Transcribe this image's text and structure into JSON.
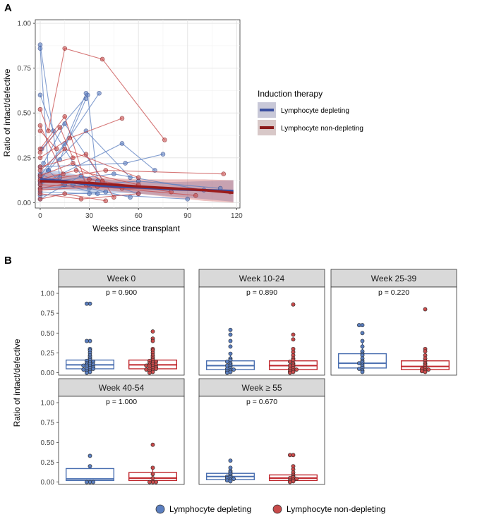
{
  "panel_a": {
    "letter": "A",
    "xlabel": "Weeks since transplant",
    "ylabel": "Ratio of intact/defective",
    "legend_title": "Induction therapy",
    "legend_items": [
      "Lymphocyte depleting",
      "Lymphocyte non-depleting"
    ]
  },
  "panel_b": {
    "letter": "B",
    "ylabel": "Ratio of intact/defective",
    "legend_items": [
      "Lymphocyte depleting",
      "Lymphocyte non-depleting"
    ]
  },
  "colors": {
    "depleting": "#3a4fa0",
    "non_depleting": "#9b1c1c",
    "depleting_light": "#5b7fc0",
    "non_depleting_light": "#c84b4b",
    "facet_header": "#d9d9d9"
  },
  "chart_data": [
    {
      "type": "scatter",
      "title": "",
      "xlabel": "Weeks since transplant",
      "ylabel": "Ratio of intact/defective",
      "xlim": [
        -3,
        122
      ],
      "ylim": [
        -0.03,
        1.02
      ],
      "x_ticks": [
        0,
        30,
        60,
        90,
        120
      ],
      "y_ticks": [
        0.0,
        0.25,
        0.5,
        0.75,
        1.0
      ],
      "y_tick_labels": [
        "0.00",
        "0.25",
        "0.50",
        "0.75",
        "1.00"
      ],
      "x_tick_labels": [
        "0",
        "30",
        "60",
        "90",
        "120"
      ],
      "grid": true,
      "legend": "right",
      "series": [
        {
          "name": "Lymphocyte depleting",
          "trajectories": [
            [
              [
                0,
                0.88
              ],
              [
                12,
                0.14
              ]
            ],
            [
              [
                0,
                0.86
              ],
              [
                5,
                0.18
              ],
              [
                14,
                0.1
              ]
            ],
            [
              [
                0,
                0.6
              ],
              [
                8,
                0.4
              ],
              [
                30,
                0.08
              ]
            ],
            [
              [
                1,
                0.3
              ],
              [
                29,
                0.6
              ],
              [
                35,
                0.12
              ]
            ],
            [
              [
                2,
                0.22
              ],
              [
                15,
                0.44
              ],
              [
                40,
                0.1
              ]
            ],
            [
              [
                0,
                0.15
              ],
              [
                15,
                0.33
              ],
              [
                28,
                0.61
              ]
            ],
            [
              [
                0,
                0.12
              ],
              [
                36,
                0.61
              ]
            ],
            [
              [
                5,
                0.18
              ],
              [
                28,
                0.4
              ],
              [
                55,
                0.14
              ]
            ],
            [
              [
                12,
                0.24
              ],
              [
                28,
                0.58
              ]
            ],
            [
              [
                0,
                0.1
              ],
              [
                50,
                0.33
              ],
              [
                70,
                0.18
              ]
            ],
            [
              [
                0,
                0.2
              ],
              [
                52,
                0.22
              ],
              [
                75,
                0.27
              ]
            ],
            [
              [
                0,
                0.08
              ],
              [
                60,
                0.12
              ],
              [
                110,
                0.08
              ]
            ],
            [
              [
                0,
                0.06
              ],
              [
                30,
                0.05
              ],
              [
                90,
                0.02
              ]
            ],
            [
              [
                0,
                0.14
              ],
              [
                20,
                0.1
              ],
              [
                55,
                0.03
              ]
            ],
            [
              [
                0,
                0.04
              ],
              [
                40,
                0.06
              ]
            ],
            [
              [
                0,
                0.16
              ],
              [
                15,
                0.1
              ],
              [
                35,
                0.05
              ]
            ],
            [
              [
                0,
                0.02
              ],
              [
                25,
                0.15
              ],
              [
                60,
                0.05
              ]
            ],
            [
              [
                0,
                0.11
              ],
              [
                45,
                0.16
              ],
              [
                100,
                0.07
              ]
            ]
          ],
          "trend": [
            [
              0,
              0.13
            ],
            [
              15,
              0.12
            ],
            [
              30,
              0.1
            ],
            [
              45,
              0.09
            ],
            [
              60,
              0.085
            ],
            [
              80,
              0.075
            ],
            [
              100,
              0.07
            ],
            [
              118,
              0.065
            ]
          ]
        },
        {
          "name": "Lymphocyte non-depleting",
          "trajectories": [
            [
              [
                0,
                0.52
              ],
              [
                5,
                0.4
              ],
              [
                15,
                0.86
              ],
              [
                38,
                0.8
              ],
              [
                76,
                0.35
              ]
            ],
            [
              [
                0,
                0.43
              ],
              [
                14,
                0.16
              ]
            ],
            [
              [
                0,
                0.4
              ],
              [
                10,
                0.3
              ]
            ],
            [
              [
                0,
                0.3
              ],
              [
                15,
                0.48
              ],
              [
                28,
                0.1
              ]
            ],
            [
              [
                0,
                0.28
              ],
              [
                12,
                0.42
              ],
              [
                20,
                0.25
              ]
            ],
            [
              [
                0,
                0.25
              ],
              [
                18,
                0.36
              ],
              [
                50,
                0.47
              ]
            ],
            [
              [
                0,
                0.2
              ],
              [
                28,
                0.27
              ],
              [
                45,
                0.03
              ]
            ],
            [
              [
                0,
                0.18
              ],
              [
                15,
                0.3
              ],
              [
                60,
                0.14
              ]
            ],
            [
              [
                0,
                0.12
              ],
              [
                40,
                0.18
              ],
              [
                112,
                0.16
              ]
            ],
            [
              [
                0,
                0.1
              ],
              [
                50,
                0.08
              ],
              [
                116,
                0.06
              ]
            ],
            [
              [
                0,
                0.08
              ],
              [
                30,
                0.13
              ],
              [
                80,
                0.06
              ]
            ],
            [
              [
                0,
                0.05
              ],
              [
                25,
                0.02
              ],
              [
                60,
                0.05
              ]
            ],
            [
              [
                0,
                0.15
              ],
              [
                20,
                0.22
              ],
              [
                38,
                0.12
              ]
            ],
            [
              [
                0,
                0.07
              ],
              [
                35,
                0.09
              ],
              [
                95,
                0.04
              ]
            ],
            [
              [
                0,
                0.02
              ],
              [
                15,
                0.05
              ],
              [
                40,
                0.01
              ]
            ],
            [
              [
                0,
                0.13
              ],
              [
                22,
                0.18
              ],
              [
                60,
                0.1
              ]
            ]
          ],
          "trend": [
            [
              0,
              0.12
            ],
            [
              15,
              0.115
            ],
            [
              30,
              0.11
            ],
            [
              45,
              0.1
            ],
            [
              60,
              0.09
            ],
            [
              80,
              0.08
            ],
            [
              100,
              0.07
            ],
            [
              118,
              0.055
            ]
          ]
        }
      ]
    },
    {
      "type": "box",
      "ylabel": "Ratio of intact/defective",
      "ylim": [
        -0.03,
        1.08
      ],
      "y_ticks": [
        0.0,
        0.25,
        0.5,
        0.75,
        1.0
      ],
      "y_tick_labels": [
        "0.00",
        "0.25",
        "0.50",
        "0.75",
        "1.00"
      ],
      "legend": "bottom",
      "groups": [
        "Lymphocyte depleting",
        "Lymphocyte non-depleting"
      ],
      "facets": [
        {
          "label": "Week 0",
          "p_label": "p = 0.900",
          "depleting": {
            "q1": 0.05,
            "median": 0.1,
            "q3": 0.16,
            "whisker_lo": 0.0,
            "whisker_hi": 0.3,
            "points": [
              0.87,
              0.87,
              0.4,
              0.4,
              0.3,
              0.28,
              0.25,
              0.22,
              0.2,
              0.18,
              0.16,
              0.15,
              0.14,
              0.13,
              0.12,
              0.11,
              0.1,
              0.1,
              0.09,
              0.08,
              0.08,
              0.07,
              0.06,
              0.05,
              0.05,
              0.04,
              0.03,
              0.02,
              0.01,
              0.0
            ]
          },
          "non_depleting": {
            "q1": 0.05,
            "median": 0.1,
            "q3": 0.16,
            "whisker_lo": 0.0,
            "whisker_hi": 0.3,
            "points": [
              0.52,
              0.43,
              0.4,
              0.3,
              0.28,
              0.25,
              0.22,
              0.2,
              0.18,
              0.16,
              0.15,
              0.14,
              0.13,
              0.12,
              0.11,
              0.1,
              0.1,
              0.09,
              0.08,
              0.08,
              0.07,
              0.06,
              0.05,
              0.05,
              0.04,
              0.03,
              0.02,
              0.01,
              0.0
            ]
          }
        },
        {
          "label": "Week 10-24",
          "p_label": "p = 0.890",
          "depleting": {
            "q1": 0.04,
            "median": 0.09,
            "q3": 0.15,
            "whisker_lo": 0.0,
            "whisker_hi": 0.24,
            "points": [
              0.54,
              0.48,
              0.4,
              0.33,
              0.24,
              0.18,
              0.16,
              0.14,
              0.12,
              0.1,
              0.09,
              0.08,
              0.06,
              0.05,
              0.04,
              0.03,
              0.02,
              0.01,
              0.0
            ]
          },
          "non_depleting": {
            "q1": 0.04,
            "median": 0.09,
            "q3": 0.15,
            "whisker_lo": 0.0,
            "whisker_hi": 0.3,
            "points": [
              0.86,
              0.48,
              0.42,
              0.3,
              0.26,
              0.22,
              0.18,
              0.16,
              0.14,
              0.12,
              0.1,
              0.09,
              0.08,
              0.06,
              0.05,
              0.04,
              0.03,
              0.02,
              0.01,
              0.0
            ]
          }
        },
        {
          "label": "Week 25-39",
          "p_label": "p = 0.220",
          "depleting": {
            "q1": 0.06,
            "median": 0.12,
            "q3": 0.24,
            "whisker_lo": 0.0,
            "whisker_hi": 0.4,
            "points": [
              0.6,
              0.6,
              0.5,
              0.4,
              0.33,
              0.27,
              0.24,
              0.22,
              0.18,
              0.15,
              0.13,
              0.12,
              0.1,
              0.08,
              0.06,
              0.05,
              0.03,
              0.01
            ]
          },
          "non_depleting": {
            "q1": 0.04,
            "median": 0.08,
            "q3": 0.15,
            "whisker_lo": 0.0,
            "whisker_hi": 0.28,
            "points": [
              0.8,
              0.3,
              0.27,
              0.22,
              0.18,
              0.15,
              0.12,
              0.1,
              0.08,
              0.06,
              0.05,
              0.04,
              0.03,
              0.02,
              0.01
            ]
          }
        },
        {
          "label": "Week 40-54",
          "p_label": "p = 1.000",
          "depleting": {
            "q1": 0.02,
            "median": 0.04,
            "q3": 0.17,
            "whisker_lo": 0.0,
            "whisker_hi": 0.2,
            "points": [
              0.33,
              0.2,
              0.0,
              0.0,
              0.0
            ]
          },
          "non_depleting": {
            "q1": 0.02,
            "median": 0.05,
            "q3": 0.12,
            "whisker_lo": 0.0,
            "whisker_hi": 0.18,
            "points": [
              0.47,
              0.18,
              0.1,
              0.05,
              0.0,
              0.0,
              0.0
            ]
          }
        },
        {
          "label": "Week ≥ 55",
          "p_label": "p = 0.670",
          "depleting": {
            "q1": 0.03,
            "median": 0.07,
            "q3": 0.11,
            "whisker_lo": 0.0,
            "whisker_hi": 0.18,
            "points": [
              0.27,
              0.18,
              0.14,
              0.12,
              0.1,
              0.08,
              0.07,
              0.06,
              0.05,
              0.04,
              0.03,
              0.02,
              0.01
            ]
          },
          "non_depleting": {
            "q1": 0.02,
            "median": 0.05,
            "q3": 0.09,
            "whisker_lo": 0.0,
            "whisker_hi": 0.2,
            "points": [
              0.34,
              0.34,
              0.2,
              0.16,
              0.12,
              0.09,
              0.07,
              0.06,
              0.05,
              0.04,
              0.03,
              0.02,
              0.01,
              0.0
            ]
          }
        }
      ]
    }
  ]
}
